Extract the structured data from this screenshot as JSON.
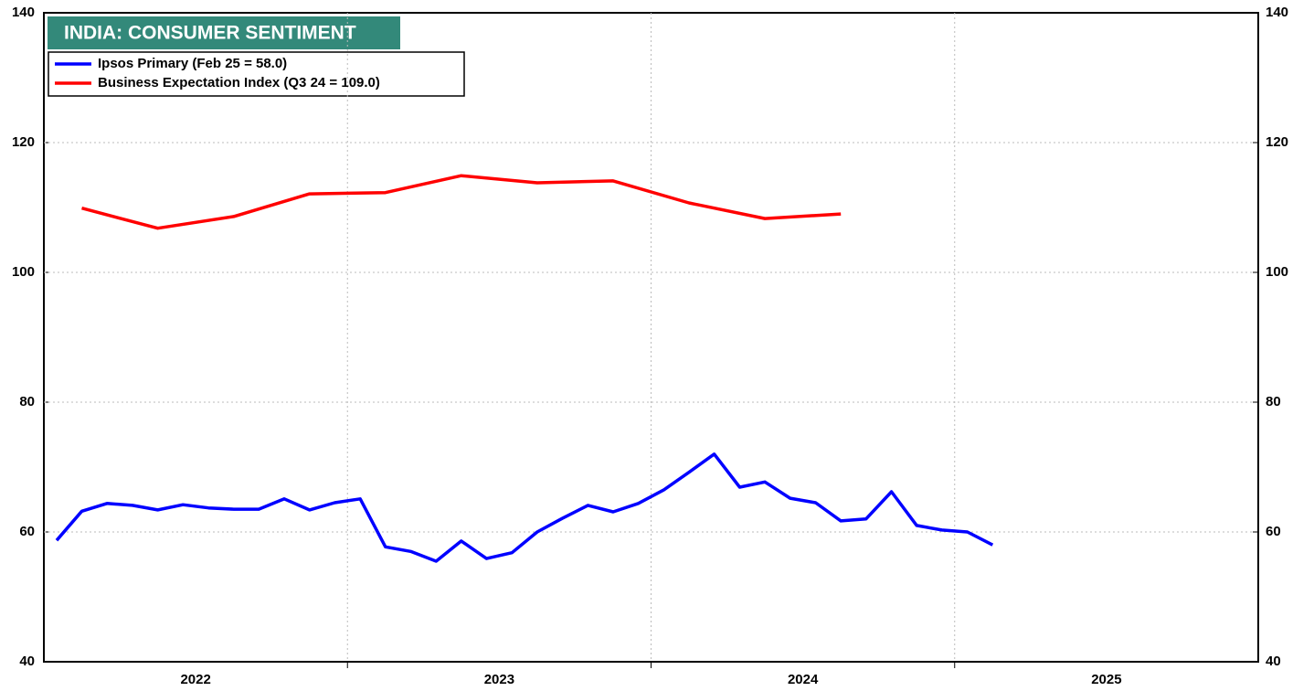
{
  "chart_data": {
    "type": "line",
    "title": "INDIA: CONSUMER SENTIMENT",
    "xlim": [
      2022,
      2026
    ],
    "xticks": [
      {
        "value": 2022.5,
        "label": "2022"
      },
      {
        "value": 2023.5,
        "label": "2023"
      },
      {
        "value": 2024.5,
        "label": "2024"
      },
      {
        "value": 2025.5,
        "label": "2025"
      }
    ],
    "xgrid": [
      2023,
      2024,
      2025
    ],
    "ylim": [
      40,
      140
    ],
    "yticks": [
      40,
      60,
      80,
      100,
      120,
      140
    ],
    "y2lim": [
      40,
      140
    ],
    "y2ticks": [
      40,
      60,
      80,
      100,
      120,
      140
    ],
    "grid": true,
    "legend": "upper left",
    "series": [
      {
        "name": "Ipsos Primary (Feb 25 = 58.0)",
        "color": "#0000ff",
        "x": [
          2022.042,
          2022.125,
          2022.208,
          2022.292,
          2022.375,
          2022.458,
          2022.542,
          2022.625,
          2022.708,
          2022.792,
          2022.875,
          2022.958,
          2023.042,
          2023.125,
          2023.208,
          2023.292,
          2023.375,
          2023.458,
          2023.542,
          2023.625,
          2023.708,
          2023.792,
          2023.875,
          2023.958,
          2024.042,
          2024.125,
          2024.208,
          2024.292,
          2024.375,
          2024.458,
          2024.542,
          2024.625,
          2024.708,
          2024.792,
          2024.875,
          2024.958,
          2025.042,
          2025.125
        ],
        "values": [
          58.7,
          63.2,
          64.4,
          64.1,
          63.4,
          64.2,
          63.7,
          63.5,
          63.5,
          65.1,
          63.4,
          64.5,
          65.1,
          57.7,
          57.0,
          55.5,
          58.6,
          55.9,
          56.8,
          60.0,
          62.1,
          64.1,
          63.1,
          64.4,
          66.5,
          69.2,
          72.0,
          66.9,
          67.7,
          65.2,
          64.5,
          61.7,
          62.0,
          66.2,
          61.0,
          60.3,
          60.0,
          58.0
        ]
      },
      {
        "name": "Business Expectation Index (Q3 24 = 109.0)",
        "color": "#ff0000",
        "x": [
          2022.125,
          2022.375,
          2022.625,
          2022.875,
          2023.125,
          2023.375,
          2023.625,
          2023.875,
          2024.125,
          2024.375,
          2024.625
        ],
        "values": [
          109.9,
          106.8,
          108.6,
          112.1,
          112.3,
          114.9,
          113.8,
          114.1,
          110.7,
          108.3,
          109.0
        ]
      }
    ]
  }
}
